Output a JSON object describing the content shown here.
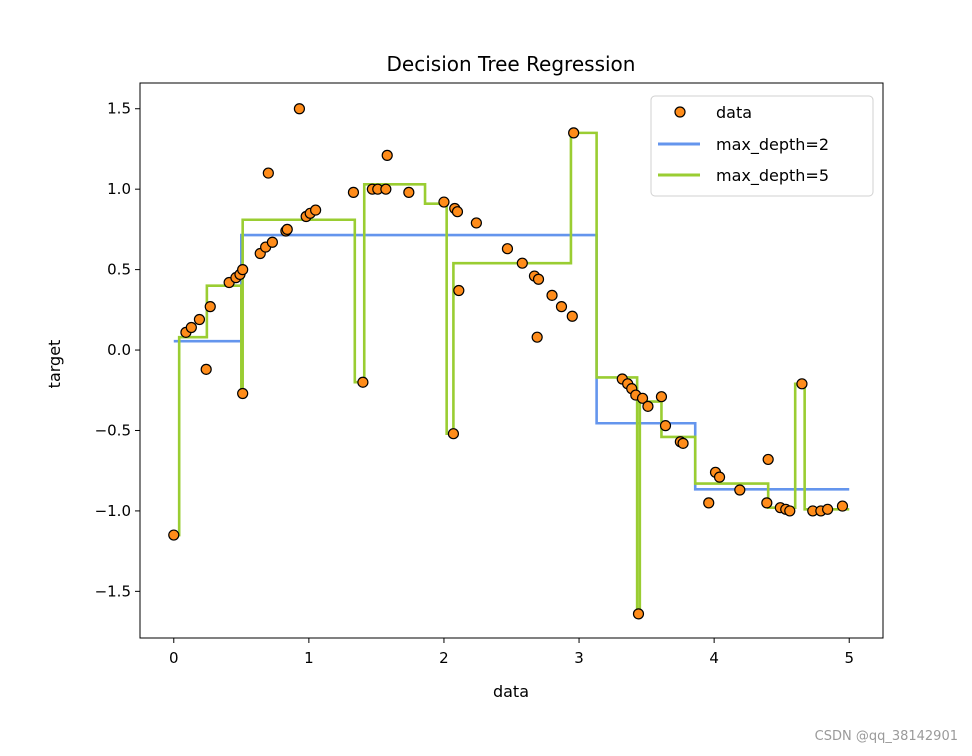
{
  "chart_data": {
    "type": "scatter",
    "title": "Decision Tree Regression",
    "xlabel": "data",
    "ylabel": "target",
    "xlim": [
      -0.25,
      5.25
    ],
    "ylim": [
      -1.79,
      1.66
    ],
    "xticks": [
      0,
      1,
      2,
      3,
      4,
      5
    ],
    "xtick_labels": [
      "0",
      "1",
      "2",
      "3",
      "4",
      "5"
    ],
    "yticks": [
      1.5,
      1.0,
      0.5,
      0.0,
      -0.5,
      -1.0,
      -1.5
    ],
    "ytick_labels": [
      "1.5",
      "1.0",
      "0.5",
      "0.0",
      "−0.5",
      "−1.0",
      "−1.5"
    ],
    "grid": false,
    "legend_placement": "top-right",
    "scatter": {
      "name": "data",
      "color": "#ff8c1a",
      "edgecolor": "#000000",
      "points": [
        [
          0.0,
          -1.15
        ],
        [
          0.09,
          0.11
        ],
        [
          0.13,
          0.14
        ],
        [
          0.19,
          0.19
        ],
        [
          0.24,
          -0.12
        ],
        [
          0.27,
          0.27
        ],
        [
          0.41,
          0.42
        ],
        [
          0.46,
          0.45
        ],
        [
          0.49,
          0.47
        ],
        [
          0.51,
          0.5
        ],
        [
          0.51,
          -0.27
        ],
        [
          0.64,
          0.6
        ],
        [
          0.68,
          0.64
        ],
        [
          0.7,
          1.1
        ],
        [
          0.73,
          0.67
        ],
        [
          0.83,
          0.74
        ],
        [
          0.84,
          0.75
        ],
        [
          0.93,
          1.5
        ],
        [
          0.98,
          0.83
        ],
        [
          1.01,
          0.85
        ],
        [
          1.05,
          0.87
        ],
        [
          1.33,
          0.98
        ],
        [
          1.4,
          -0.2
        ],
        [
          1.47,
          1.0
        ],
        [
          1.51,
          1.0
        ],
        [
          1.57,
          1.0
        ],
        [
          1.58,
          1.21
        ],
        [
          1.74,
          0.98
        ],
        [
          2.0,
          0.92
        ],
        [
          2.07,
          -0.52
        ],
        [
          2.08,
          0.88
        ],
        [
          2.1,
          0.86
        ],
        [
          2.11,
          0.37
        ],
        [
          2.24,
          0.79
        ],
        [
          2.47,
          0.63
        ],
        [
          2.58,
          0.54
        ],
        [
          2.67,
          0.46
        ],
        [
          2.69,
          0.08
        ],
        [
          2.7,
          0.44
        ],
        [
          2.8,
          0.34
        ],
        [
          2.87,
          0.27
        ],
        [
          2.95,
          0.21
        ],
        [
          2.96,
          1.35
        ],
        [
          3.32,
          -0.18
        ],
        [
          3.36,
          -0.21
        ],
        [
          3.39,
          -0.24
        ],
        [
          3.42,
          -0.28
        ],
        [
          3.44,
          -1.64
        ],
        [
          3.47,
          -0.3
        ],
        [
          3.51,
          -0.35
        ],
        [
          3.61,
          -0.29
        ],
        [
          3.64,
          -0.47
        ],
        [
          3.75,
          -0.57
        ],
        [
          3.77,
          -0.58
        ],
        [
          3.96,
          -0.95
        ],
        [
          4.01,
          -0.76
        ],
        [
          4.04,
          -0.79
        ],
        [
          4.19,
          -0.87
        ],
        [
          4.39,
          -0.95
        ],
        [
          4.4,
          -0.68
        ],
        [
          4.49,
          -0.98
        ],
        [
          4.53,
          -0.99
        ],
        [
          4.56,
          -1.0
        ],
        [
          4.65,
          -0.21
        ],
        [
          4.73,
          -1.0
        ],
        [
          4.79,
          -1.0
        ],
        [
          4.84,
          -0.99
        ],
        [
          4.95,
          -0.97
        ]
      ]
    },
    "series": [
      {
        "name": "max_depth=2",
        "color": "#6495ed",
        "steps": {
          "edges": [
            0,
            0.5,
            3.13,
            3.86,
            5.0
          ],
          "values": [
            0.055,
            0.715,
            -0.455,
            -0.866
          ]
        }
      },
      {
        "name": "max_depth=5",
        "color": "#9acd32",
        "steps": {
          "edges": [
            0,
            0.04,
            0.245,
            0.5,
            0.51,
            1.34,
            1.41,
            1.86,
            2.02,
            2.07,
            2.94,
            3.13,
            3.43,
            3.45,
            3.61,
            3.86,
            4.4,
            4.6,
            4.67,
            5.0
          ],
          "values": [
            -1.15,
            0.08,
            0.4,
            -0.27,
            0.81,
            -0.2,
            1.03,
            0.91,
            -0.52,
            0.54,
            1.35,
            -0.17,
            -1.64,
            -0.32,
            -0.54,
            -0.83,
            -0.98,
            -0.21,
            -0.99
          ]
        }
      }
    ]
  },
  "watermark": "CSDN @qq_38142901"
}
